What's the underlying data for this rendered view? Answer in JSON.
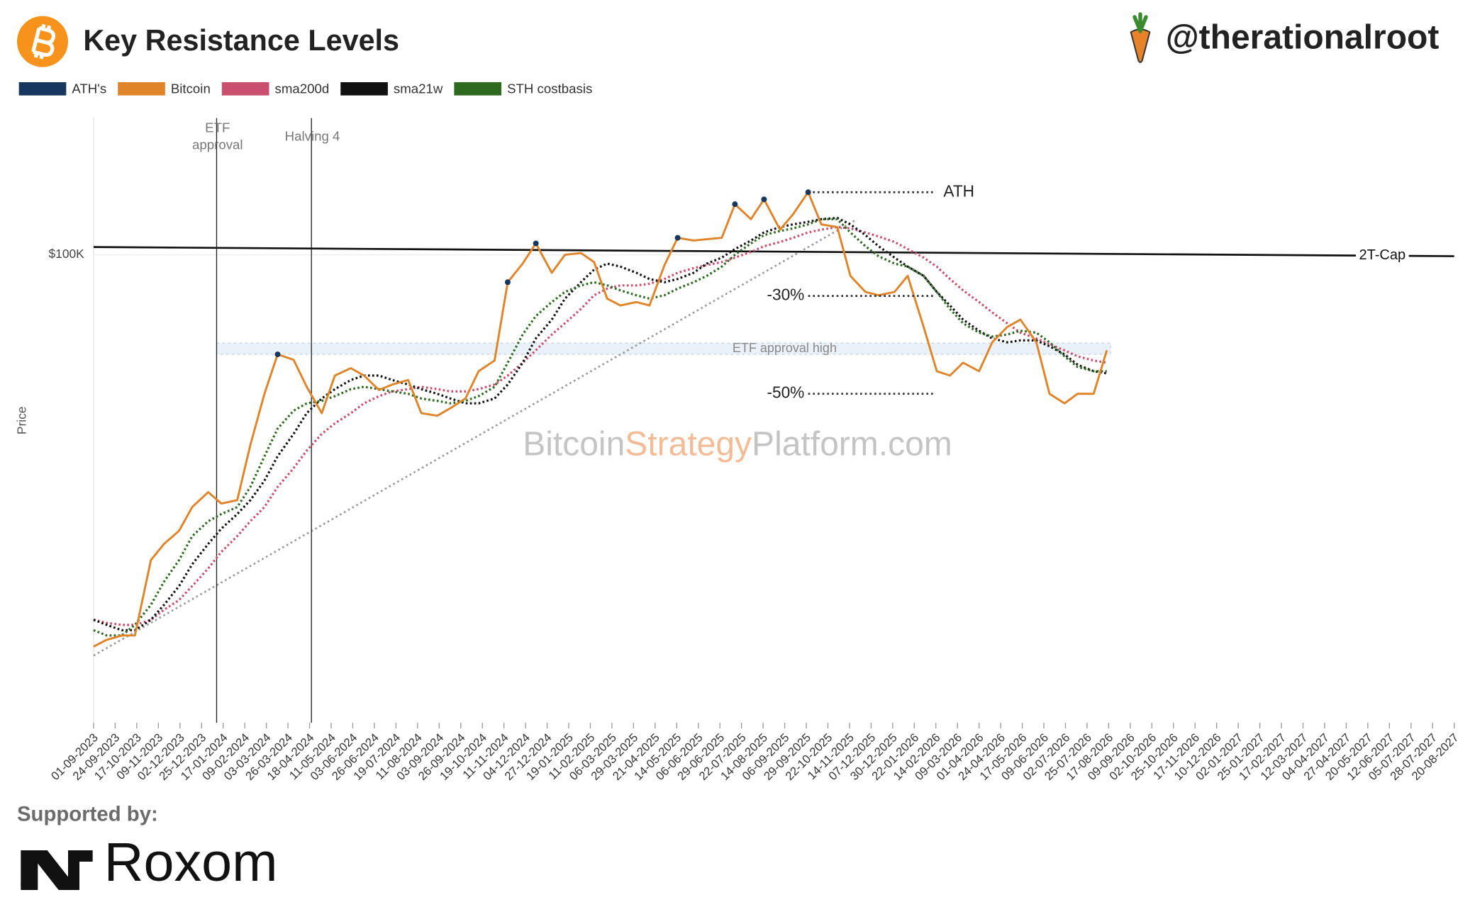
{
  "header": {
    "title": "Key Resistance Levels",
    "handle": "@therationalroot"
  },
  "footer": {
    "supported_by": "Supported by:",
    "sponsor": "Roxom"
  },
  "chart_data": {
    "type": "line",
    "y_label": "Price",
    "log_y": true,
    "x": [
      "01-09-2023",
      "15-09-2023",
      "01-10-2023",
      "15-10-2023",
      "01-11-2023",
      "15-11-2023",
      "01-12-2023",
      "15-12-2023",
      "01-01-2024",
      "15-01-2024",
      "01-02-2024",
      "15-02-2024",
      "01-03-2024",
      "15-03-2024",
      "01-04-2024",
      "15-04-2024",
      "01-05-2024",
      "15-05-2024",
      "01-06-2024",
      "15-06-2024",
      "01-07-2024",
      "15-07-2024",
      "01-08-2024",
      "15-08-2024",
      "01-09-2024",
      "15-09-2024",
      "01-10-2024",
      "15-10-2024",
      "01-11-2024",
      "15-11-2024",
      "01-12-2024",
      "15-12-2024",
      "01-01-2025",
      "15-01-2025",
      "01-02-2025",
      "15-02-2025",
      "01-03-2025",
      "15-03-2025",
      "01-04-2025",
      "15-04-2025",
      "01-05-2025",
      "15-05-2025",
      "01-06-2025",
      "15-06-2025",
      "01-07-2025",
      "15-07-2025",
      "01-08-2025",
      "15-08-2025",
      "01-09-2025",
      "15-09-2025",
      "01-10-2025",
      "15-10-2025",
      "01-11-2025",
      "15-11-2025",
      "01-12-2025",
      "15-12-2025",
      "01-01-2026",
      "15-01-2026",
      "01-02-2026",
      "15-02-2026",
      "01-03-2026",
      "15-03-2026",
      "01-04-2026",
      "15-04-2026",
      "01-05-2026",
      "15-05-2026",
      "01-06-2026",
      "15-06-2026",
      "01-07-2026",
      "15-07-2026",
      "01-08-2026",
      "15-08-2026"
    ],
    "series": [
      {
        "name": "ATH's",
        "color": "#17375e",
        "style": "markers",
        "values": [
          null,
          null,
          null,
          null,
          null,
          null,
          null,
          null,
          null,
          null,
          null,
          null,
          null,
          71000,
          null,
          null,
          null,
          null,
          null,
          null,
          null,
          null,
          null,
          null,
          null,
          null,
          null,
          null,
          null,
          91000,
          null,
          104000,
          null,
          null,
          null,
          null,
          null,
          null,
          null,
          null,
          null,
          106000,
          null,
          null,
          null,
          119000,
          null,
          121000,
          null,
          null,
          124000,
          null,
          null,
          null,
          null,
          null,
          null,
          null,
          null,
          null,
          null,
          null,
          null,
          null,
          null,
          null,
          null,
          null,
          null,
          null,
          null,
          null
        ]
      },
      {
        "name": "Bitcoin",
        "color": "#e0842a",
        "style": "solid",
        "values": [
          26000,
          26600,
          27000,
          27000,
          35000,
          37000,
          38700,
          42000,
          44200,
          42500,
          43000,
          52000,
          62000,
          71000,
          69700,
          63500,
          58000,
          66000,
          67700,
          66000,
          62800,
          64000,
          65000,
          58000,
          57500,
          59000,
          61000,
          67000,
          69500,
          91000,
          97000,
          104000,
          94000,
          100000,
          100600,
          97500,
          86000,
          84000,
          85000,
          84000,
          96500,
          106000,
          105000,
          105500,
          106000,
          119000,
          113000,
          121000,
          109000,
          115000,
          124000,
          111000,
          110000,
          93000,
          88000,
          87000,
          88000,
          93000,
          78000,
          67000,
          66000,
          69000,
          67000,
          74000,
          78000,
          80000,
          74000,
          62000,
          60000,
          62000,
          62000,
          72000
        ]
      },
      {
        "name": "sma200d",
        "color": "#c8506e",
        "style": "dotted",
        "values": [
          28500,
          28200,
          28000,
          28000,
          28500,
          29500,
          30500,
          32000,
          34000,
          36000,
          38000,
          40000,
          42000,
          45000,
          48000,
          51000,
          54000,
          56000,
          58000,
          60000,
          61500,
          62500,
          63000,
          63500,
          63000,
          62500,
          62500,
          63000,
          64000,
          66000,
          69000,
          72000,
          76000,
          79000,
          83000,
          87000,
          89000,
          90000,
          90000,
          90500,
          92000,
          94000,
          95500,
          96500,
          97500,
          99000,
          101000,
          103000,
          104500,
          106000,
          108000,
          109000,
          110000,
          109500,
          108000,
          106500,
          104500,
          102000,
          99000,
          96000,
          92000,
          88500,
          85000,
          82000,
          79000,
          76500,
          75000,
          73500,
          72000,
          70500,
          69500,
          69000
        ]
      },
      {
        "name": "sma21w",
        "color": "#111111",
        "style": "dotted",
        "values": [
          28500,
          28000,
          27500,
          27500,
          28500,
          30000,
          32000,
          34500,
          37000,
          39000,
          41000,
          43000,
          46000,
          50000,
          54000,
          58000,
          61000,
          63000,
          65000,
          66000,
          66000,
          65000,
          64000,
          63000,
          62000,
          61000,
          60000,
          60000,
          61000,
          64000,
          69000,
          75000,
          80000,
          86000,
          91000,
          95000,
          97000,
          96000,
          94000,
          92000,
          91000,
          92000,
          94000,
          97000,
          99000,
          102000,
          105000,
          108000,
          110000,
          111000,
          112000,
          113000,
          113500,
          111000,
          107000,
          103000,
          99000,
          96000,
          93000,
          88000,
          84000,
          80000,
          77000,
          75000,
          74000,
          74500,
          74500,
          73000,
          71000,
          68500,
          67000,
          66500
        ]
      },
      {
        "name": "STH costbasis",
        "color": "#2d6a1f",
        "style": "dotted",
        "values": [
          27500,
          27000,
          27000,
          28000,
          30000,
          32500,
          35000,
          38000,
          40000,
          41000,
          42000,
          45000,
          50000,
          55000,
          58500,
          60000,
          60500,
          61500,
          63000,
          63500,
          63000,
          62500,
          62000,
          61000,
          60500,
          60000,
          60500,
          61500,
          63500,
          69000,
          76000,
          81000,
          85000,
          88000,
          90000,
          91000,
          90000,
          88500,
          87000,
          86000,
          87000,
          89000,
          91000,
          93000,
          96000,
          100000,
          104000,
          107000,
          108500,
          109500,
          111000,
          113000,
          113000,
          108000,
          103000,
          99500,
          97000,
          96000,
          93000,
          88000,
          83000,
          79000,
          76500,
          75500,
          76000,
          77000,
          76500,
          74000,
          70500,
          68000,
          67000,
          67000
        ]
      }
    ],
    "xlim": [
      "01-09-2023",
      "20-08-2027"
    ],
    "xticks": [
      "01-09-2023",
      "24-09-2023",
      "17-10-2023",
      "09-11-2023",
      "02-12-2023",
      "25-12-2023",
      "17-01-2024",
      "09-02-2024",
      "03-03-2024",
      "26-03-2024",
      "18-04-2024",
      "11-05-2024",
      "03-06-2024",
      "26-06-2024",
      "19-07-2024",
      "11-08-2024",
      "03-09-2024",
      "26-09-2024",
      "19-10-2024",
      "11-11-2024",
      "04-12-2024",
      "27-12-2024",
      "19-01-2025",
      "11-02-2025",
      "06-03-2025",
      "29-03-2025",
      "21-04-2025",
      "14-05-2025",
      "06-06-2025",
      "29-06-2025",
      "22-07-2025",
      "14-08-2025",
      "06-09-2025",
      "29-09-2025",
      "22-10-2025",
      "14-11-2025",
      "07-12-2025",
      "30-12-2025",
      "22-01-2026",
      "14-02-2026",
      "09-03-2026",
      "01-04-2026",
      "24-04-2026",
      "17-05-2026",
      "09-06-2026",
      "02-07-2026",
      "25-07-2026",
      "17-08-2026",
      "09-09-2026",
      "02-10-2026",
      "25-10-2026",
      "17-11-2026",
      "10-12-2026",
      "02-01-2027",
      "25-01-2027",
      "17-02-2027",
      "12-03-2027",
      "04-04-2027",
      "27-04-2027",
      "20-05-2027",
      "12-06-2027",
      "05-07-2027",
      "28-07-2027",
      "20-08-2027"
    ],
    "ylim": [
      20000,
      160000
    ],
    "yticks": [
      {
        "value": 100000,
        "label": "$100K"
      }
    ],
    "events": [
      {
        "date": "10-01-2024",
        "label": [
          "ETF",
          "approval"
        ]
      },
      {
        "date": "20-04-2024",
        "label": [
          "Halving 4"
        ]
      }
    ],
    "levels": [
      {
        "label": "ATH",
        "value": 124000,
        "from": "01-10-2025",
        "to": "14-02-2026",
        "label_side": "right"
      },
      {
        "label": "-30%",
        "value": 86800,
        "from": "01-10-2025",
        "to": "14-02-2026",
        "label_side": "left"
      },
      {
        "label": "-50%",
        "value": 62000,
        "from": "01-10-2025",
        "to": "14-02-2026",
        "label_side": "left"
      }
    ],
    "band": {
      "label": "ETF approval high",
      "values": [
        71000,
        73800
      ],
      "from": "10-01-2024",
      "to": "19-08-2026"
    },
    "cap_line": {
      "label": "2T-Cap",
      "x": [
        "01-09-2023",
        "20-08-2027"
      ],
      "values": [
        102700,
        99500
      ],
      "color": "#111111"
    },
    "trendline": {
      "x": [
        "01-09-2023",
        "22-11-2025"
      ],
      "values": [
        25200,
        113000
      ],
      "color": "#9a9a9a"
    },
    "watermark": [
      "Bitcoin",
      "Strategy",
      "Platform.com"
    ]
  }
}
